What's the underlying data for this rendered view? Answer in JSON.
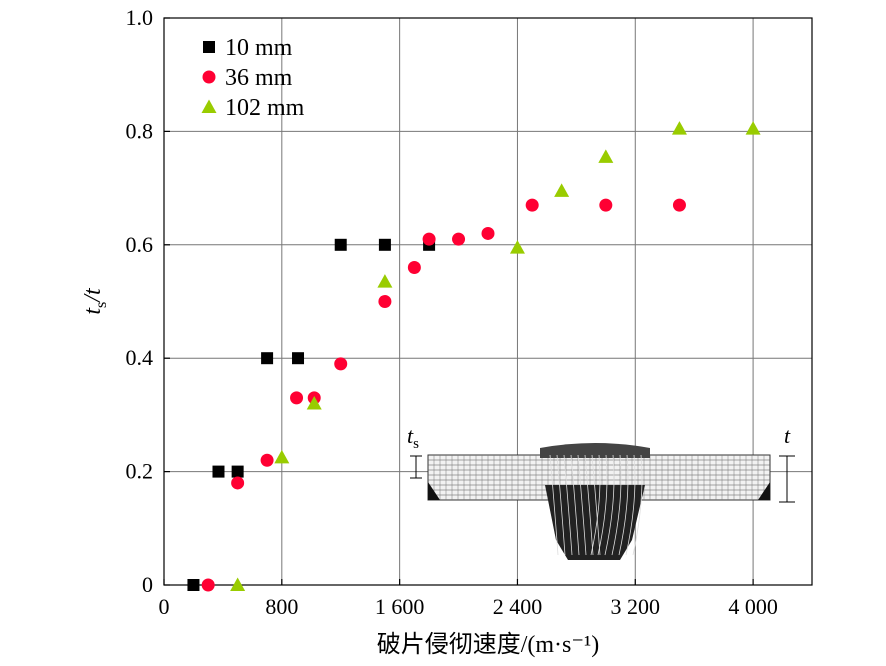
{
  "chart_data": {
    "type": "scatter",
    "xlabel": "破片侵彻速度/(m·s⁻¹)",
    "ylabel": "ts/t",
    "xlim": [
      0,
      4400
    ],
    "ylim": [
      0,
      1.0
    ],
    "x_ticks": [
      0,
      800,
      1600,
      2400,
      3200,
      4000
    ],
    "x_tick_labels": [
      "0",
      "800",
      "1 600",
      "2 400",
      "3 200",
      "4 000"
    ],
    "y_ticks": [
      0,
      0.2,
      0.4,
      0.6,
      0.8,
      1.0
    ],
    "y_tick_labels": [
      "0",
      "0.2",
      "0.4",
      "0.6",
      "0.8",
      "1.0"
    ],
    "grid": true,
    "legend_position": "top-left",
    "series": [
      {
        "name": "10 mm",
        "marker": "square",
        "color": "#000000",
        "points": [
          [
            200,
            0.0
          ],
          [
            370,
            0.2
          ],
          [
            500,
            0.2
          ],
          [
            700,
            0.4
          ],
          [
            910,
            0.4
          ],
          [
            1200,
            0.6
          ],
          [
            1500,
            0.6
          ],
          [
            1800,
            0.6
          ]
        ]
      },
      {
        "name": "36 mm",
        "marker": "circle",
        "color": "#ff0033",
        "points": [
          [
            300,
            0.0
          ],
          [
            500,
            0.18
          ],
          [
            700,
            0.22
          ],
          [
            900,
            0.33
          ],
          [
            1020,
            0.33
          ],
          [
            1200,
            0.39
          ],
          [
            1500,
            0.5
          ],
          [
            1700,
            0.56
          ],
          [
            1800,
            0.61
          ],
          [
            2000,
            0.61
          ],
          [
            2200,
            0.62
          ],
          [
            2500,
            0.67
          ],
          [
            3000,
            0.67
          ],
          [
            3500,
            0.67
          ]
        ]
      },
      {
        "name": "102 mm",
        "marker": "triangle",
        "color": "#99cc00",
        "points": [
          [
            500,
            0.0
          ],
          [
            800,
            0.225
          ],
          [
            1020,
            0.32
          ],
          [
            1500,
            0.535
          ],
          [
            2400,
            0.595
          ],
          [
            2700,
            0.695
          ],
          [
            3000,
            0.755
          ],
          [
            3500,
            0.805
          ],
          [
            4000,
            0.805
          ]
        ]
      }
    ],
    "inset": {
      "left_label": "t",
      "left_label_sub": "s",
      "right_label": "t"
    }
  }
}
